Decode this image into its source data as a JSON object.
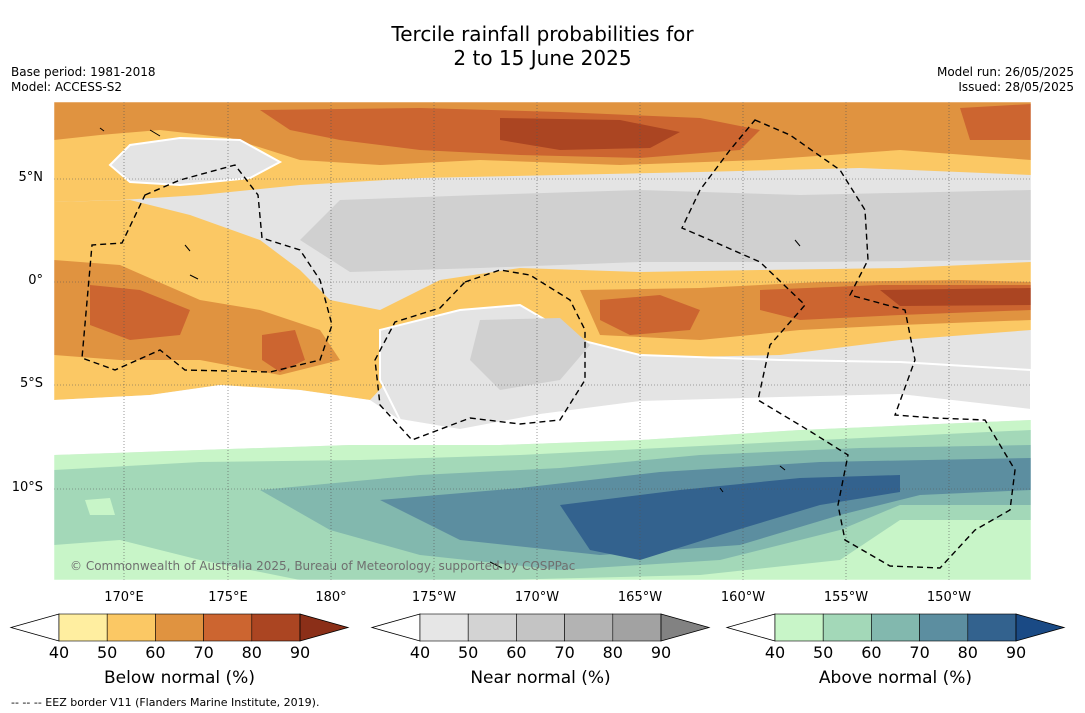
{
  "title_line1": "Tercile rainfall probabilities for",
  "title_line2": "2 to 15 June 2025",
  "base_period": "Base period: 1981-2018",
  "model": "Model: ACCESS-S2",
  "model_run": "Model run: 26/05/2025",
  "issued": "Issued: 28/05/2025",
  "lat_labels": [
    "5°N",
    "0°",
    "5°S",
    "10°S"
  ],
  "lon_labels": [
    "170°E",
    "175°E",
    "180°",
    "175°W",
    "170°W",
    "165°W",
    "160°W",
    "155°W",
    "150°W"
  ],
  "copyright": "© Commonwealth of Australia 2025, Bureau of Meteorology, supported by COSPPac",
  "footnote": "--  --  -- EEZ border V11 (Flanders Marine Institute, 2019).",
  "colorbars": [
    {
      "title": "Below normal (%)",
      "ticks": [
        "40",
        "50",
        "60",
        "70",
        "80",
        "90"
      ],
      "colors": [
        "#ffeea0",
        "#fbc864",
        "#e09340",
        "#cc6530",
        "#ab4522",
        "#8b2f18"
      ]
    },
    {
      "title": "Near normal (%)",
      "ticks": [
        "40",
        "50",
        "60",
        "70",
        "80",
        "90"
      ],
      "colors": [
        "#e6e6e6",
        "#d3d3d3",
        "#c4c4c4",
        "#b3b3b3",
        "#a2a2a2",
        "#828282"
      ]
    },
    {
      "title": "Above normal (%)",
      "ticks": [
        "40",
        "50",
        "60",
        "70",
        "80",
        "90"
      ],
      "colors": [
        "#c8f5c8",
        "#a3d8b8",
        "#82b8ae",
        "#5c8ea0",
        "#33628e",
        "#1a4a85"
      ]
    }
  ],
  "colors": {
    "land_outline": "#000000",
    "eez_border": "#000000"
  }
}
